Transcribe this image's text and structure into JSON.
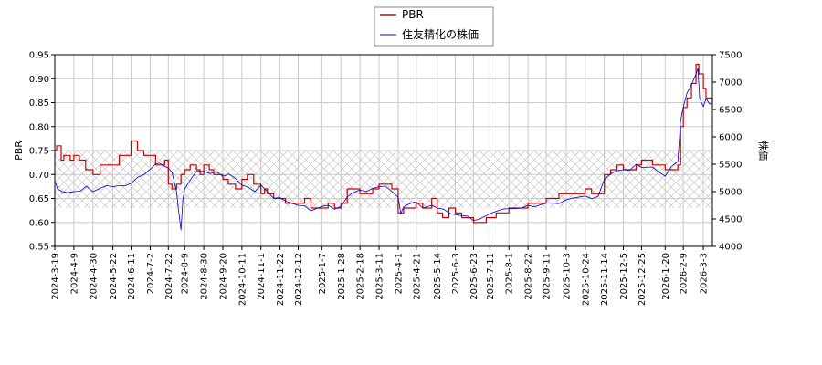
{
  "chart_data": {
    "type": "line",
    "title": "",
    "xlabel": "",
    "ylabel": "PBR",
    "ylabel_right": "株価",
    "ylim": [
      0.55,
      0.95
    ],
    "ylim_right": [
      4000,
      7500
    ],
    "yticks": [
      "0.55",
      "0.60",
      "0.65",
      "0.70",
      "0.75",
      "0.80",
      "0.85",
      "0.90",
      "0.95"
    ],
    "yticks_right": [
      "4000",
      "4500",
      "5000",
      "5500",
      "6000",
      "6500",
      "7000",
      "7500"
    ],
    "x_tick_labels": [
      "2024-3-19",
      "2024-4-9",
      "2024-4-30",
      "2024-5-22",
      "2024-6-11",
      "2024-7-2",
      "2024-7-22",
      "2024-8-9",
      "2024-8-30",
      "2024-9-20",
      "2024-10-11",
      "2024-11-1",
      "2024-11-22",
      "2024-12-12",
      "2025-1-7",
      "2025-1-28",
      "2025-2-18",
      "2025-3-11",
      "2025-4-1",
      "2025-4-21",
      "2025-5-14",
      "2025-6-3",
      "2025-6-23",
      "2025-7-11",
      "2025-8-1",
      "2025-8-22",
      "2025-9-11",
      "2025-10-3",
      "2025-10-24",
      "2025-11-14",
      "2025-12-5",
      "2025-12-25",
      "2026-1-20",
      "2026-2-9",
      "2026-3-3"
    ],
    "grid": true,
    "legend_position": "top-center",
    "hatched_band_pbr": [
      0.63,
      0.75
    ],
    "series": [
      {
        "name": "PBR",
        "color": "#cc0000",
        "axis": "left",
        "x": [
          "2024-3-19",
          "2024-3-21",
          "2024-3-26",
          "2024-3-29",
          "2024-4-5",
          "2024-4-9",
          "2024-4-15",
          "2024-4-22",
          "2024-4-26",
          "2024-4-30",
          "2024-5-8",
          "2024-5-15",
          "2024-5-22",
          "2024-5-29",
          "2024-6-3",
          "2024-6-11",
          "2024-6-18",
          "2024-6-25",
          "2024-7-2",
          "2024-7-8",
          "2024-7-12",
          "2024-7-18",
          "2024-7-22",
          "2024-7-26",
          "2024-7-31",
          "2024-8-2",
          "2024-8-5",
          "2024-8-9",
          "2024-8-15",
          "2024-8-22",
          "2024-8-26",
          "2024-8-30",
          "2024-9-5",
          "2024-9-10",
          "2024-9-16",
          "2024-9-20",
          "2024-9-26",
          "2024-10-4",
          "2024-10-11",
          "2024-10-17",
          "2024-10-24",
          "2024-11-1",
          "2024-11-5",
          "2024-11-8",
          "2024-11-15",
          "2024-11-22",
          "2024-11-28",
          "2024-12-5",
          "2024-12-12",
          "2024-12-19",
          "2024-12-26",
          "2025-1-7",
          "2025-1-14",
          "2025-1-21",
          "2025-1-28",
          "2025-2-4",
          "2025-2-10",
          "2025-2-18",
          "2025-2-25",
          "2025-3-4",
          "2025-3-11",
          "2025-3-18",
          "2025-3-25",
          "2025-4-1",
          "2025-4-4",
          "2025-4-7",
          "2025-4-10",
          "2025-4-21",
          "2025-4-28",
          "2025-5-8",
          "2025-5-14",
          "2025-5-20",
          "2025-5-27",
          "2025-6-3",
          "2025-6-10",
          "2025-6-17",
          "2025-6-23",
          "2025-6-30",
          "2025-7-7",
          "2025-7-11",
          "2025-7-18",
          "2025-7-25",
          "2025-8-1",
          "2025-8-8",
          "2025-8-15",
          "2025-8-22",
          "2025-8-29",
          "2025-9-5",
          "2025-9-11",
          "2025-9-18",
          "2025-9-25",
          "2025-10-3",
          "2025-10-10",
          "2025-10-17",
          "2025-10-24",
          "2025-10-31",
          "2025-11-7",
          "2025-11-14",
          "2025-11-21",
          "2025-11-28",
          "2025-12-5",
          "2025-12-12",
          "2025-12-19",
          "2025-12-25",
          "2026-1-6",
          "2026-1-13",
          "2026-1-20",
          "2026-1-27",
          "2026-2-3",
          "2026-2-6",
          "2026-2-9",
          "2026-2-13",
          "2026-2-18",
          "2026-2-23",
          "2026-2-26",
          "2026-3-3",
          "2026-3-6",
          "2026-3-10",
          "2026-3-13"
        ],
        "values": [
          0.75,
          0.76,
          0.73,
          0.74,
          0.73,
          0.74,
          0.73,
          0.71,
          0.71,
          0.7,
          0.72,
          0.72,
          0.72,
          0.74,
          0.74,
          0.77,
          0.75,
          0.74,
          0.74,
          0.72,
          0.72,
          0.73,
          0.68,
          0.67,
          0.68,
          0.68,
          0.7,
          0.71,
          0.72,
          0.71,
          0.7,
          0.72,
          0.71,
          0.7,
          0.7,
          0.69,
          0.68,
          0.67,
          0.69,
          0.7,
          0.68,
          0.66,
          0.67,
          0.66,
          0.65,
          0.65,
          0.64,
          0.64,
          0.64,
          0.65,
          0.63,
          0.63,
          0.64,
          0.63,
          0.64,
          0.67,
          0.67,
          0.66,
          0.66,
          0.67,
          0.68,
          0.68,
          0.67,
          0.62,
          0.62,
          0.63,
          0.63,
          0.64,
          0.63,
          0.65,
          0.62,
          0.61,
          0.63,
          0.62,
          0.61,
          0.61,
          0.6,
          0.6,
          0.61,
          0.61,
          0.62,
          0.62,
          0.63,
          0.63,
          0.63,
          0.64,
          0.64,
          0.64,
          0.65,
          0.65,
          0.66,
          0.66,
          0.66,
          0.66,
          0.67,
          0.66,
          0.66,
          0.7,
          0.71,
          0.72,
          0.71,
          0.71,
          0.72,
          0.73,
          0.72,
          0.72,
          0.71,
          0.71,
          0.72,
          0.8,
          0.84,
          0.86,
          0.89,
          0.93,
          0.91,
          0.88,
          0.86,
          0.86,
          0.85
        ]
      },
      {
        "name": "住友精化の株価",
        "color": "#0000cc",
        "axis": "right",
        "x": [
          "2024-3-19",
          "2024-3-22",
          "2024-3-27",
          "2024-4-2",
          "2024-4-9",
          "2024-4-16",
          "2024-4-23",
          "2024-4-30",
          "2024-5-8",
          "2024-5-15",
          "2024-5-22",
          "2024-5-29",
          "2024-6-5",
          "2024-6-11",
          "2024-6-18",
          "2024-6-25",
          "2024-7-2",
          "2024-7-8",
          "2024-7-12",
          "2024-7-18",
          "2024-7-22",
          "2024-7-26",
          "2024-7-31",
          "2024-8-2",
          "2024-8-5",
          "2024-8-7",
          "2024-8-9",
          "2024-8-15",
          "2024-8-22",
          "2024-8-30",
          "2024-9-6",
          "2024-9-13",
          "2024-9-20",
          "2024-9-27",
          "2024-10-4",
          "2024-10-11",
          "2024-10-18",
          "2024-10-25",
          "2024-11-1",
          "2024-11-8",
          "2024-11-15",
          "2024-11-22",
          "2024-11-29",
          "2024-12-6",
          "2024-12-12",
          "2024-12-19",
          "2024-12-26",
          "2025-1-7",
          "2025-1-14",
          "2025-1-21",
          "2025-1-28",
          "2025-2-4",
          "2025-2-10",
          "2025-2-18",
          "2025-2-25",
          "2025-3-4",
          "2025-3-11",
          "2025-3-18",
          "2025-3-25",
          "2025-4-1",
          "2025-4-4",
          "2025-4-7",
          "2025-4-10",
          "2025-4-17",
          "2025-4-21",
          "2025-4-28",
          "2025-5-8",
          "2025-5-14",
          "2025-5-21",
          "2025-5-28",
          "2025-6-3",
          "2025-6-10",
          "2025-6-17",
          "2025-6-23",
          "2025-6-30",
          "2025-7-7",
          "2025-7-11",
          "2025-7-18",
          "2025-7-25",
          "2025-8-1",
          "2025-8-8",
          "2025-8-15",
          "2025-8-22",
          "2025-8-29",
          "2025-9-5",
          "2025-9-11",
          "2025-9-18",
          "2025-9-25",
          "2025-10-3",
          "2025-10-10",
          "2025-10-17",
          "2025-10-24",
          "2025-10-31",
          "2025-11-7",
          "2025-11-14",
          "2025-11-21",
          "2025-11-28",
          "2025-12-5",
          "2025-12-12",
          "2025-12-19",
          "2025-12-25",
          "2026-1-6",
          "2026-1-13",
          "2026-1-20",
          "2026-1-27",
          "2026-2-3",
          "2026-2-6",
          "2026-2-9",
          "2026-2-13",
          "2026-2-18",
          "2026-2-23",
          "2026-2-25",
          "2026-2-27",
          "2026-3-3",
          "2026-3-6",
          "2026-3-10",
          "2026-3-13"
        ],
        "values": [
          5200,
          5050,
          5000,
          4980,
          5000,
          5010,
          5100,
          5000,
          5060,
          5110,
          5090,
          5110,
          5110,
          5150,
          5260,
          5310,
          5410,
          5500,
          5520,
          5460,
          5430,
          5350,
          5000,
          4700,
          4300,
          4850,
          5050,
          5210,
          5370,
          5370,
          5330,
          5360,
          5280,
          5320,
          5240,
          5120,
          5080,
          5000,
          5120,
          5000,
          4880,
          4890,
          4820,
          4780,
          4750,
          4740,
          4650,
          4730,
          4750,
          4680,
          4730,
          4900,
          4980,
          5030,
          5000,
          5060,
          5090,
          5100,
          5000,
          4900,
          4600,
          4720,
          4750,
          4800,
          4810,
          4700,
          4750,
          4700,
          4680,
          4600,
          4580,
          4560,
          4550,
          4470,
          4500,
          4560,
          4600,
          4640,
          4680,
          4690,
          4690,
          4700,
          4750,
          4720,
          4760,
          4790,
          4790,
          4780,
          4850,
          4880,
          4900,
          4920,
          4870,
          4910,
          5220,
          5330,
          5380,
          5400,
          5390,
          5500,
          5440,
          5450,
          5360,
          5280,
          5460,
          5550,
          6300,
          6550,
          6800,
          6950,
          7150,
          7250,
          6700,
          6550,
          6700,
          6600,
          6600
        ]
      }
    ]
  }
}
